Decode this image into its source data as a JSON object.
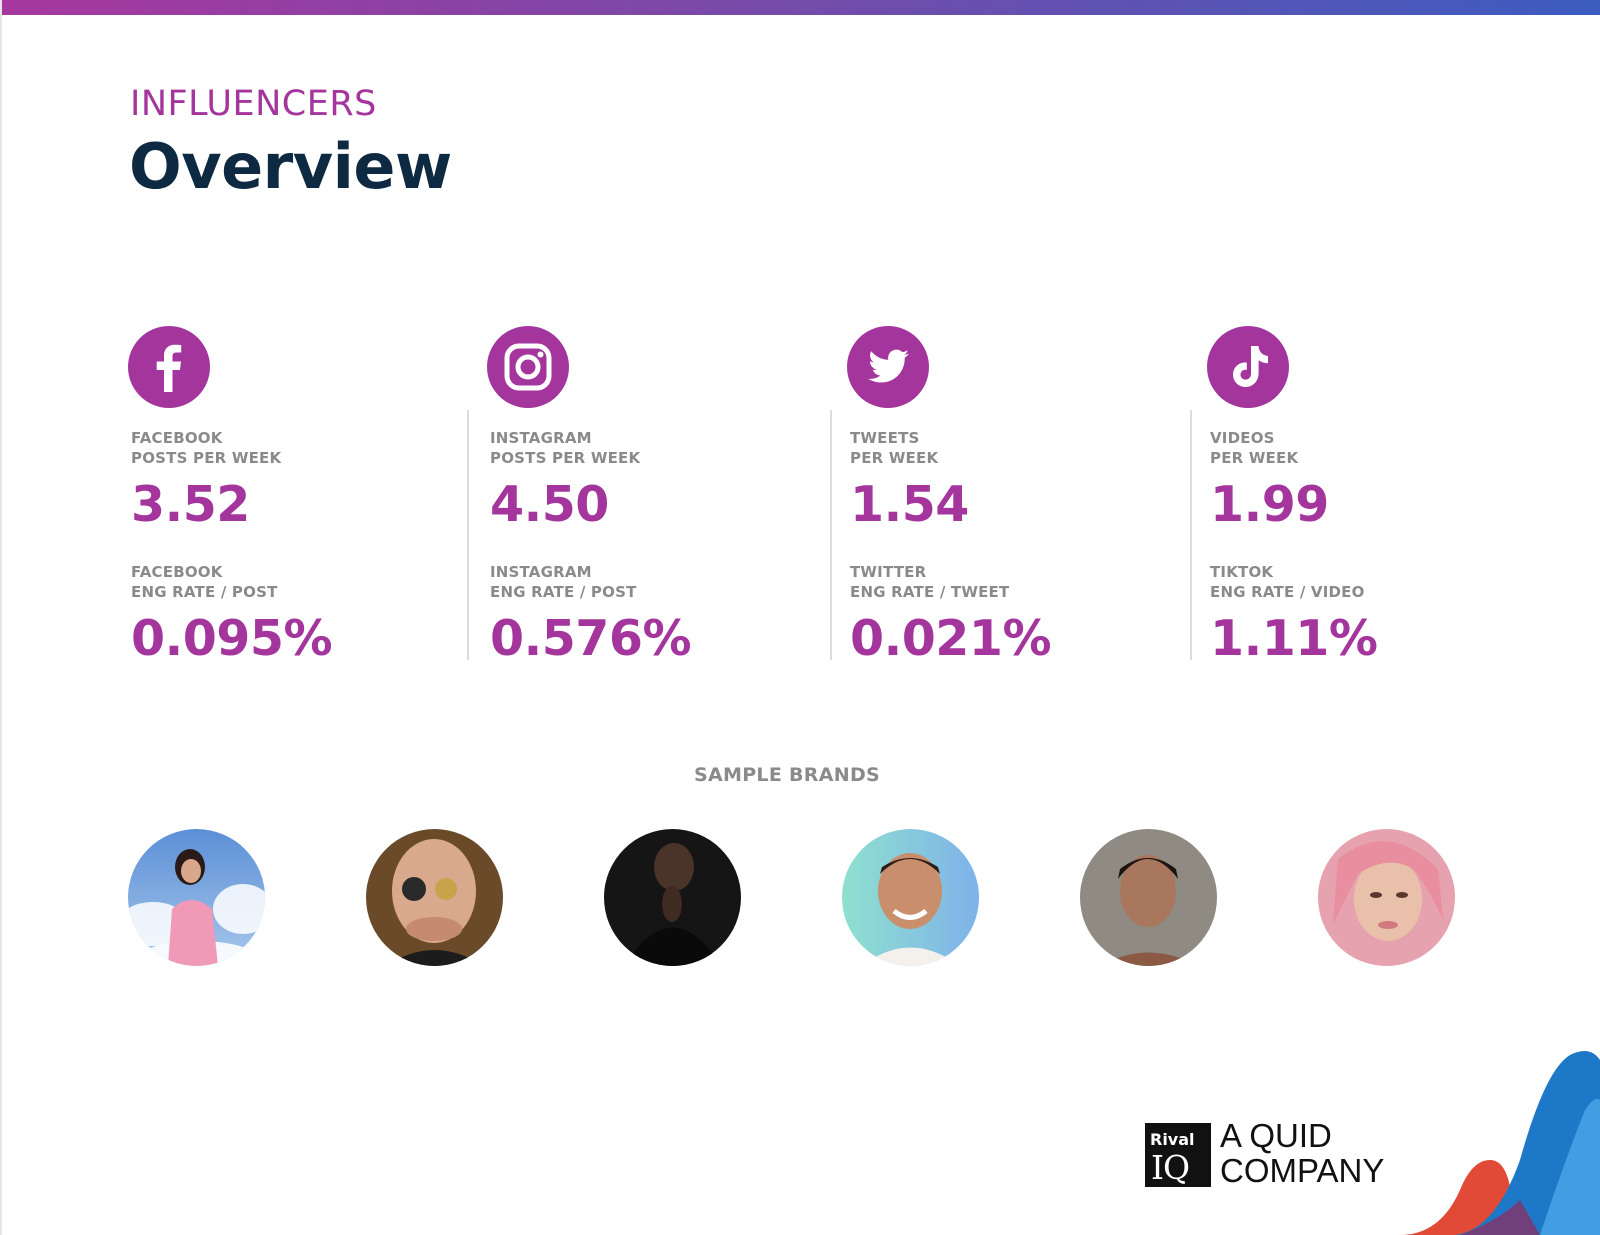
{
  "header": {
    "eyebrow": "INFLUENCERS",
    "title": "Overview"
  },
  "metrics": [
    {
      "network": "Facebook",
      "icon": "facebook-icon",
      "label1": [
        "FACEBOOK",
        "POSTS PER WEEK"
      ],
      "value1": "3.52",
      "label2": [
        "FACEBOOK",
        "ENG RATE / POST"
      ],
      "value2": "0.095%"
    },
    {
      "network": "Instagram",
      "icon": "instagram-icon",
      "label1": [
        "INSTAGRAM",
        "POSTS PER WEEK"
      ],
      "value1": "4.50",
      "label2": [
        "INSTAGRAM",
        "ENG RATE / POST"
      ],
      "value2": "0.576%"
    },
    {
      "network": "Twitter",
      "icon": "twitter-icon",
      "label1": [
        "TWEETS",
        "PER WEEK"
      ],
      "value1": "1.54",
      "label2": [
        "TWITTER",
        "ENG RATE / TWEET"
      ],
      "value2": "0.021%"
    },
    {
      "network": "TikTok",
      "icon": "tiktok-icon",
      "label1": [
        "VIDEOS",
        "PER WEEK"
      ],
      "value1": "1.99",
      "label2": [
        "TIKTOK",
        "ENG RATE / VIDEO"
      ],
      "value2": "1.11%"
    }
  ],
  "sample_brands": {
    "heading": "SAMPLE BRANDS"
  },
  "footer": {
    "logo_top": "Rival",
    "logo_bottom": "IQ",
    "tagline_1": "A QUID",
    "tagline_2": "COMPANY"
  },
  "colors": {
    "accent": "#a3359d",
    "title": "#0d2a42",
    "label": "#8a8a8a"
  }
}
